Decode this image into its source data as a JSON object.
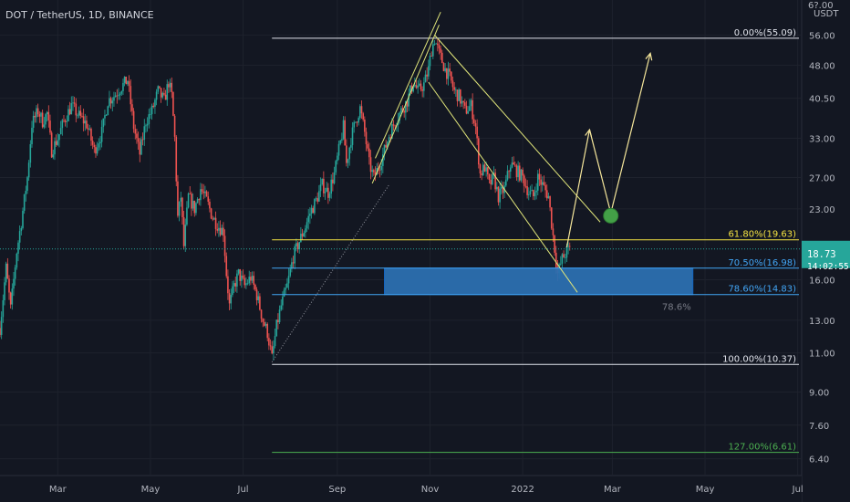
{
  "header": {
    "symbol": "DOT / TetherUS, 1D, BINANCE"
  },
  "price_axis": {
    "unit": "USDT",
    "top_clip": "6?.00"
  },
  "colors": {
    "background": "#131722",
    "up": "#26a69a",
    "down": "#ef5350",
    "fib_white": "#e0e3eb",
    "fib_yellow": "#f5e342",
    "fib_blue": "#42a5f5",
    "fib_green": "#4caf50",
    "zone": "#2b6fb0",
    "projection": "#f5e69b",
    "channel": "#e0e57a",
    "pivot": "#43a047",
    "axis_text": "#b2b5be"
  },
  "current_price": {
    "value": "18.73",
    "countdown": "14:02:55"
  },
  "chart_data": {
    "type": "candlestick",
    "title": "DOT / TetherUS, 1D, BINANCE",
    "y_scale": "log",
    "ylim": [
      5.9,
      67
    ],
    "x_range": [
      "2021-01-22",
      "2022-07-03"
    ],
    "y_ticks": [
      56.0,
      48.0,
      40.5,
      33.0,
      27.0,
      23.0,
      16.0,
      13.0,
      11.0,
      9.0,
      7.6,
      6.4
    ],
    "x_ticks": [
      {
        "label": "Mar",
        "date": "2021-03-01"
      },
      {
        "label": "May",
        "date": "2021-05-01"
      },
      {
        "label": "Jul",
        "date": "2021-07-01"
      },
      {
        "label": "Sep",
        "date": "2021-09-01"
      },
      {
        "label": "Nov",
        "date": "2021-11-01"
      },
      {
        "label": "2022",
        "date": "2022-01-01"
      },
      {
        "label": "Mar",
        "date": "2022-03-01"
      },
      {
        "label": "May",
        "date": "2022-05-01"
      },
      {
        "label": "Jul",
        "date": "2022-07-01"
      }
    ],
    "price_path": [
      [
        "2021-01-22",
        12.5
      ],
      [
        "2021-01-26",
        17.0
      ],
      [
        "2021-01-29",
        13.8
      ],
      [
        "2021-02-02",
        18.5
      ],
      [
        "2021-02-05",
        21.5
      ],
      [
        "2021-02-09",
        27.0
      ],
      [
        "2021-02-12",
        35.5
      ],
      [
        "2021-02-16",
        38.0
      ],
      [
        "2021-02-19",
        36.0
      ],
      [
        "2021-02-22",
        37.5
      ],
      [
        "2021-02-25",
        31.0
      ],
      [
        "2021-03-01",
        33.0
      ],
      [
        "2021-03-05",
        36.0
      ],
      [
        "2021-03-10",
        39.0
      ],
      [
        "2021-03-15",
        37.0
      ],
      [
        "2021-03-20",
        35.5
      ],
      [
        "2021-03-25",
        31.0
      ],
      [
        "2021-03-30",
        34.0
      ],
      [
        "2021-04-03",
        40.0
      ],
      [
        "2021-04-07",
        41.0
      ],
      [
        "2021-04-12",
        43.0
      ],
      [
        "2021-04-16",
        44.5
      ],
      [
        "2021-04-20",
        35.0
      ],
      [
        "2021-04-24",
        30.5
      ],
      [
        "2021-04-28",
        36.0
      ],
      [
        "2021-05-02",
        38.0
      ],
      [
        "2021-05-06",
        42.0
      ],
      [
        "2021-05-10",
        40.0
      ],
      [
        "2021-05-13",
        44.0
      ],
      [
        "2021-05-15",
        41.0
      ],
      [
        "2021-05-17",
        33.0
      ],
      [
        "2021-05-19",
        22.0
      ],
      [
        "2021-05-21",
        24.5
      ],
      [
        "2021-05-23",
        19.0
      ],
      [
        "2021-05-26",
        24.5
      ],
      [
        "2021-05-30",
        23.0
      ],
      [
        "2021-06-03",
        25.5
      ],
      [
        "2021-06-07",
        24.0
      ],
      [
        "2021-06-11",
        22.0
      ],
      [
        "2021-06-15",
        21.0
      ],
      [
        "2021-06-18",
        20.5
      ],
      [
        "2021-06-20",
        16.5
      ],
      [
        "2021-06-22",
        14.0
      ],
      [
        "2021-06-25",
        15.5
      ],
      [
        "2021-06-28",
        16.5
      ],
      [
        "2021-07-02",
        15.5
      ],
      [
        "2021-07-06",
        16.2
      ],
      [
        "2021-07-10",
        14.8
      ],
      [
        "2021-07-14",
        13.0
      ],
      [
        "2021-07-17",
        12.2
      ],
      [
        "2021-07-20",
        10.7
      ],
      [
        "2021-07-23",
        12.6
      ],
      [
        "2021-07-26",
        14.0
      ],
      [
        "2021-07-30",
        15.5
      ],
      [
        "2021-08-03",
        18.0
      ],
      [
        "2021-08-07",
        19.5
      ],
      [
        "2021-08-11",
        21.0
      ],
      [
        "2021-08-14",
        22.5
      ],
      [
        "2021-08-18",
        24.0
      ],
      [
        "2021-08-22",
        26.0
      ],
      [
        "2021-08-26",
        25.0
      ],
      [
        "2021-08-30",
        27.5
      ],
      [
        "2021-09-02",
        31.0
      ],
      [
        "2021-09-05",
        35.0
      ],
      [
        "2021-09-07",
        29.0
      ],
      [
        "2021-09-10",
        33.0
      ],
      [
        "2021-09-13",
        36.0
      ],
      [
        "2021-09-16",
        38.5
      ],
      [
        "2021-09-19",
        34.0
      ],
      [
        "2021-09-22",
        29.0
      ],
      [
        "2021-09-25",
        27.0
      ],
      [
        "2021-09-29",
        29.0
      ],
      [
        "2021-10-02",
        31.0
      ],
      [
        "2021-10-05",
        33.5
      ],
      [
        "2021-10-09",
        36.0
      ],
      [
        "2021-10-13",
        38.0
      ],
      [
        "2021-10-17",
        40.0
      ],
      [
        "2021-10-21",
        44.0
      ],
      [
        "2021-10-24",
        42.0
      ],
      [
        "2021-10-28",
        43.5
      ],
      [
        "2021-10-31",
        47.0
      ],
      [
        "2021-11-02",
        52.0
      ],
      [
        "2021-11-04",
        54.8
      ],
      [
        "2021-11-07",
        51.0
      ],
      [
        "2021-11-11",
        47.0
      ],
      [
        "2021-11-14",
        45.0
      ],
      [
        "2021-11-17",
        42.0
      ],
      [
        "2021-11-20",
        41.0
      ],
      [
        "2021-11-24",
        38.0
      ],
      [
        "2021-11-28",
        39.0
      ],
      [
        "2021-12-01",
        35.0
      ],
      [
        "2021-12-04",
        27.5
      ],
      [
        "2021-12-07",
        28.5
      ],
      [
        "2021-12-10",
        26.0
      ],
      [
        "2021-12-13",
        27.0
      ],
      [
        "2021-12-16",
        24.5
      ],
      [
        "2021-12-20",
        25.5
      ],
      [
        "2021-12-24",
        29.0
      ],
      [
        "2021-12-28",
        28.0
      ],
      [
        "2022-01-01",
        27.0
      ],
      [
        "2022-01-05",
        25.0
      ],
      [
        "2022-01-08",
        24.5
      ],
      [
        "2022-01-11",
        27.0
      ],
      [
        "2022-01-14",
        26.0
      ],
      [
        "2022-01-18",
        24.5
      ],
      [
        "2022-01-21",
        20.0
      ],
      [
        "2022-01-24",
        16.5
      ],
      [
        "2022-01-27",
        17.8
      ],
      [
        "2022-01-30",
        18.5
      ],
      [
        "2022-02-01",
        18.73
      ]
    ],
    "fib_levels": [
      {
        "label": "0.00%(55.09)",
        "price": 55.09,
        "color": "#e0e3eb"
      },
      {
        "label": "61.80%(19.63)",
        "price": 19.63,
        "color": "#f5e342"
      },
      {
        "label": "70.50%(16.98)",
        "price": 16.98,
        "color": "#42a5f5"
      },
      {
        "label": "78.60%(14.83)",
        "price": 14.83,
        "color": "#42a5f5"
      },
      {
        "label": "100.00%(10.37)",
        "price": 10.37,
        "color": "#e0e3eb"
      },
      {
        "label": "127.00%(6.61)",
        "price": 6.61,
        "color": "#4caf50"
      }
    ],
    "zone": {
      "from_date": "2021-10-02",
      "to_date": "2022-04-23",
      "top": 16.98,
      "bottom": 14.83,
      "label": "78.6%"
    },
    "projection_path": [
      [
        "2022-01-30",
        18.9
      ],
      [
        "2022-02-14",
        34.5
      ],
      [
        "2022-02-28",
        22.5
      ],
      [
        "2022-03-26",
        51.0
      ]
    ],
    "pivot_marker": {
      "date": "2022-02-28",
      "price": 22.2
    },
    "channels": [
      {
        "a": [
          "2021-09-24",
          26.2
        ],
        "b": [
          "2021-11-07",
          59.0
        ]
      },
      {
        "a": [
          "2021-09-26",
          29.8
        ],
        "b": [
          "2021-11-08",
          63.0
        ]
      },
      {
        "a": [
          "2021-10-31",
          44.0
        ],
        "b": [
          "2022-02-06",
          15.0
        ]
      },
      {
        "a": [
          "2021-11-04",
          56.0
        ],
        "b": [
          "2022-02-21",
          21.5
        ]
      }
    ],
    "dotted_trend": {
      "a": [
        "2021-07-20",
        10.5
      ],
      "b": [
        "2021-10-05",
        26.0
      ]
    }
  }
}
